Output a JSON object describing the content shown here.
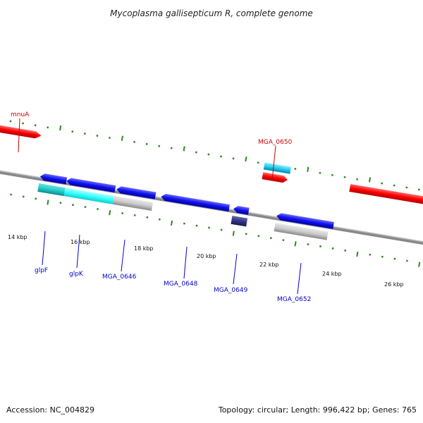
{
  "title": "Mycoplasma gallisepticum R, complete genome",
  "footer": {
    "accession": "Accession: NC_004829",
    "topology": "Topology: circular; Length: 996,422 bp; Genes: 765"
  },
  "colors": {
    "backbone": "#808080",
    "tick": "#2a8a1a",
    "forward_label": "#cc0000",
    "reverse_label": "#0000cc",
    "red_gene": "#ff0000",
    "blue_gene": "#1010ee",
    "cyan_gene": "#22ccee",
    "light_cyan_gene": "#33ffff",
    "teal_gene": "#22cccc",
    "grey_gene": "#cccccc",
    "dark_gene": "#333388"
  },
  "axis": {
    "tick_labels": [
      "14 kbp",
      "16 kbp",
      "18 kbp",
      "20 kbp",
      "22 kbp",
      "24 kbp",
      "26 kbp"
    ]
  },
  "gene_labels": {
    "top": [
      "mnuA",
      "MGA_0650"
    ],
    "bottom": [
      "glpF",
      "glpK",
      "MGA_0646",
      "MGA_0648",
      "MGA_0649",
      "MGA_0652"
    ]
  },
  "features": [
    {
      "name": "mnuA",
      "strand": "+",
      "track": "outer",
      "color": "red_gene"
    },
    {
      "name": "MGA_0650",
      "strand": "+",
      "track": "outer2",
      "color": "cyan_gene"
    },
    {
      "name": "MGA_0650b",
      "strand": "+",
      "track": "outer",
      "color": "red_gene"
    },
    {
      "name": "right-red",
      "strand": "+",
      "track": "outer",
      "color": "red_gene"
    },
    {
      "name": "glpF",
      "strand": "-",
      "track": "inner",
      "color": "blue_gene"
    },
    {
      "name": "glpK",
      "strand": "-",
      "track": "inner",
      "color": "blue_gene"
    },
    {
      "name": "MGA_0646",
      "strand": "-",
      "track": "inner",
      "color": "blue_gene"
    },
    {
      "name": "MGA_0648",
      "strand": "-",
      "track": "inner",
      "color": "blue_gene"
    },
    {
      "name": "MGA_0649",
      "strand": "-",
      "track": "inner",
      "color": "blue_gene"
    },
    {
      "name": "MGA_0652",
      "strand": "-",
      "track": "inner",
      "color": "blue_gene"
    },
    {
      "name": "glpF-cds",
      "strand": "-",
      "track": "inner2",
      "color": "teal_gene"
    },
    {
      "name": "glpK-cds",
      "strand": "-",
      "track": "inner2",
      "color": "light_cyan_gene"
    },
    {
      "name": "MGA_0646-cds",
      "strand": "-",
      "track": "inner2",
      "color": "grey_gene"
    },
    {
      "name": "MGA_0649-cds",
      "strand": "-",
      "track": "inner2",
      "color": "dark_gene"
    },
    {
      "name": "MGA_0652-cds",
      "strand": "-",
      "track": "inner2",
      "color": "grey_gene"
    }
  ]
}
